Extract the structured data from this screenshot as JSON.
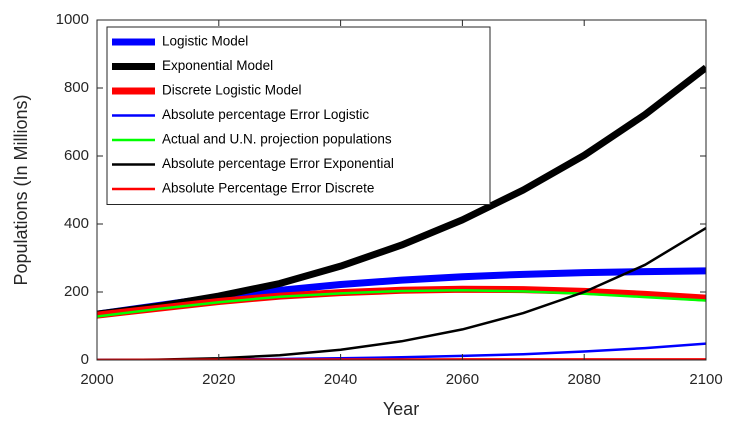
{
  "chart_data": {
    "type": "line",
    "xlabel": "Year",
    "ylabel": "Populations (In Millions)",
    "x": [
      2000,
      2010,
      2020,
      2030,
      2040,
      2050,
      2060,
      2070,
      2080,
      2090,
      2100
    ],
    "series": [
      {
        "name": "Logistic Model",
        "color": "#0000ff",
        "linewidth": 7,
        "values": [
          135,
          160,
          185,
          205,
          222,
          235,
          245,
          252,
          257,
          260,
          262
        ]
      },
      {
        "name": "Exponential Model",
        "color": "#000000",
        "linewidth": 7,
        "values": [
          135,
          158,
          188,
          225,
          276,
          338,
          412,
          500,
          602,
          722,
          860
        ]
      },
      {
        "name": "Discrete Logistic Model",
        "color": "#ff0000",
        "linewidth": 7,
        "values": [
          132,
          152,
          172,
          188,
          198,
          205,
          208,
          207,
          202,
          193,
          182
        ]
      },
      {
        "name": "Absolute percentage Error Logistic",
        "color": "#0000ff",
        "linewidth": 2.5,
        "values": [
          0,
          0.5,
          1.5,
          3,
          5,
          8,
          12,
          17,
          25,
          35,
          48
        ]
      },
      {
        "name": "Actual and U.N. projection populations",
        "color": "#00ff00",
        "linewidth": 2.5,
        "values": [
          128,
          150,
          170,
          186,
          196,
          203,
          205,
          202,
          195,
          185,
          175
        ]
      },
      {
        "name": "Absolute percentage Error Exponential",
        "color": "#000000",
        "linewidth": 2.5,
        "values": [
          0,
          1,
          5,
          14,
          30,
          55,
          90,
          138,
          200,
          280,
          388
        ]
      },
      {
        "name": "Absolute Percentage Error Discrete",
        "color": "#ff0000",
        "linewidth": 2.5,
        "values": [
          0,
          0.5,
          1,
          1,
          1.5,
          1.5,
          2,
          2,
          2,
          2,
          2
        ]
      }
    ],
    "xlim": [
      2000,
      2100
    ],
    "xticks": [
      2000,
      2020,
      2040,
      2060,
      2080,
      2100
    ],
    "ylim": [
      0,
      1000
    ],
    "yticks": [
      0,
      200,
      400,
      600,
      800,
      1000
    ],
    "grid": false,
    "legend": "upper-left"
  }
}
